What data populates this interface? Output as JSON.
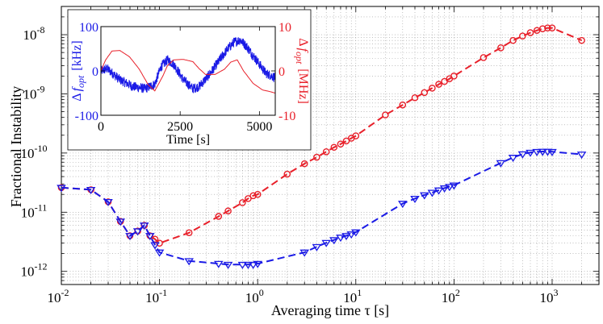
{
  "chart_data": {
    "type": "line",
    "xscale": "log",
    "yscale": "log",
    "xlabel_prefix": "Averaging time ",
    "xlabel_symbol": "τ",
    "xlabel_unit": " [s]",
    "ylabel": "Fractional Instability",
    "xlim": [
      0.01,
      3000
    ],
    "ylim": [
      6e-13,
      3e-08
    ],
    "x_ticks": [
      {
        "base": "10",
        "exp": "-2",
        "value": 0.01
      },
      {
        "base": "10",
        "exp": "-1",
        "value": 0.1
      },
      {
        "base": "10",
        "exp": "0",
        "value": 1
      },
      {
        "base": "10",
        "exp": "1",
        "value": 10
      },
      {
        "base": "10",
        "exp": "2",
        "value": 100
      },
      {
        "base": "10",
        "exp": "3",
        "value": 1000
      }
    ],
    "y_ticks": [
      {
        "base": "10",
        "exp": "-12",
        "value": 1e-12
      },
      {
        "base": "10",
        "exp": "-11",
        "value": 1e-11
      },
      {
        "base": "10",
        "exp": "-10",
        "value": 1e-10
      },
      {
        "base": "10",
        "exp": "-9",
        "value": 1e-09
      },
      {
        "base": "10",
        "exp": "-8",
        "value": 1e-08
      }
    ],
    "grid": true,
    "series": [
      {
        "name": "red",
        "color": "#e8202a",
        "marker": "circle",
        "line": "dashed",
        "x": [
          0.01,
          0.02,
          0.03,
          0.04,
          0.05,
          0.06,
          0.07,
          0.08,
          0.09,
          0.1,
          0.2,
          0.4,
          0.5,
          0.7,
          0.8,
          0.9,
          1,
          2,
          3,
          4,
          5,
          6,
          7,
          8,
          9,
          10,
          20,
          30,
          40,
          50,
          60,
          70,
          80,
          90,
          100,
          200,
          300,
          400,
          500,
          600,
          700,
          800,
          900,
          1000,
          2000
        ],
        "y": [
          2.6e-11,
          2.4e-11,
          1.5e-11,
          7e-12,
          4e-12,
          4.8e-12,
          6e-12,
          4e-12,
          3.5e-12,
          3e-12,
          4.5e-12,
          8.5e-12,
          1.05e-11,
          1.45e-11,
          1.7e-11,
          1.9e-11,
          2e-11,
          4.4e-11,
          6.6e-11,
          8.5e-11,
          1.05e-10,
          1.25e-10,
          1.42e-10,
          1.6e-10,
          1.78e-10,
          1.95e-10,
          4.4e-10,
          6.5e-10,
          8.6e-10,
          1.05e-09,
          1.25e-09,
          1.45e-09,
          1.62e-09,
          1.8e-09,
          2e-09,
          4.1e-09,
          6e-09,
          8e-09,
          9.5e-09,
          1.08e-08,
          1.18e-08,
          1.26e-08,
          1.3e-08,
          1.3e-08,
          8e-09
        ]
      },
      {
        "name": "blue",
        "color": "#1a1ae6",
        "marker": "triangle-down",
        "line": "dashed",
        "x": [
          0.01,
          0.02,
          0.03,
          0.04,
          0.05,
          0.06,
          0.07,
          0.08,
          0.09,
          0.1,
          0.2,
          0.4,
          0.5,
          0.7,
          0.8,
          0.9,
          1,
          3,
          4,
          5,
          6,
          7,
          8,
          9,
          10,
          30,
          40,
          50,
          60,
          70,
          80,
          90,
          100,
          300,
          400,
          500,
          600,
          700,
          800,
          900,
          1000,
          2000
        ],
        "y": [
          2.6e-11,
          2.4e-11,
          1.5e-11,
          7e-12,
          4e-12,
          4.8e-12,
          6e-12,
          4e-12,
          2.8e-12,
          2.1e-12,
          1.5e-12,
          1.35e-12,
          1.3e-12,
          1.3e-12,
          1.3e-12,
          1.3e-12,
          1.35e-12,
          2.1e-12,
          2.6e-12,
          3.05e-12,
          3.4e-12,
          3.75e-12,
          4e-12,
          4.25e-12,
          4.6e-12,
          1.4e-11,
          1.7e-11,
          1.95e-11,
          2.15e-11,
          2.35e-11,
          2.55e-11,
          2.7e-11,
          2.85e-11,
          6.8e-11,
          8.4e-11,
          9.6e-11,
          1.02e-10,
          1.05e-10,
          1.06e-10,
          1.06e-10,
          1.05e-10,
          9.5e-11
        ]
      }
    ],
    "inset": {
      "type": "line",
      "xlabel": "Time [s]",
      "xlim": [
        0,
        5500
      ],
      "x_ticks": [
        0,
        2500,
        5000
      ],
      "left_axis": {
        "delta": "Δ",
        "symbol": "f",
        "sub": "opt",
        "unit": "[kHz]",
        "color": "#1a1ae6",
        "ylim": [
          -100,
          100
        ],
        "ticks": [
          -100,
          0,
          100
        ]
      },
      "right_axis": {
        "delta": "Δ",
        "symbol": "f",
        "sub": "opt",
        "unit": "[MHz]",
        "color": "#e8202a",
        "ylim": [
          -10,
          10
        ],
        "ticks": [
          -10,
          0,
          10
        ]
      },
      "series": [
        {
          "name": "blue (kHz, noisy)",
          "axis": "left",
          "color": "#1a1ae6",
          "noise_amplitude": 11,
          "x": [
            0,
            200,
            600,
            1000,
            1400,
            1700,
            1900,
            2100,
            2300,
            2600,
            2900,
            3100,
            3400,
            3700,
            4000,
            4200,
            4400,
            4600,
            4900,
            5200,
            5500
          ],
          "y": [
            0,
            5,
            -20,
            -35,
            -40,
            -30,
            10,
            25,
            15,
            -20,
            -40,
            -35,
            -10,
            20,
            50,
            65,
            70,
            55,
            25,
            -5,
            -15
          ]
        },
        {
          "name": "red (MHz)",
          "axis": "right",
          "color": "#e8202a",
          "x": [
            0,
            150,
            350,
            600,
            900,
            1200,
            1500,
            1700,
            1950,
            2100,
            2300,
            2600,
            2900,
            3100,
            3300,
            3600,
            3900,
            4100,
            4300,
            4500,
            4800,
            5100,
            5300,
            5500
          ],
          "y": [
            0,
            2.5,
            4.5,
            4.6,
            3.2,
            0.5,
            -3.2,
            -4.5,
            -1.2,
            1.2,
            2.5,
            2.6,
            2.1,
            0.5,
            -0.8,
            -0.8,
            0.4,
            2.0,
            2.5,
            0,
            -2.8,
            -4.3,
            -4.6,
            -5
          ]
        }
      ]
    }
  }
}
